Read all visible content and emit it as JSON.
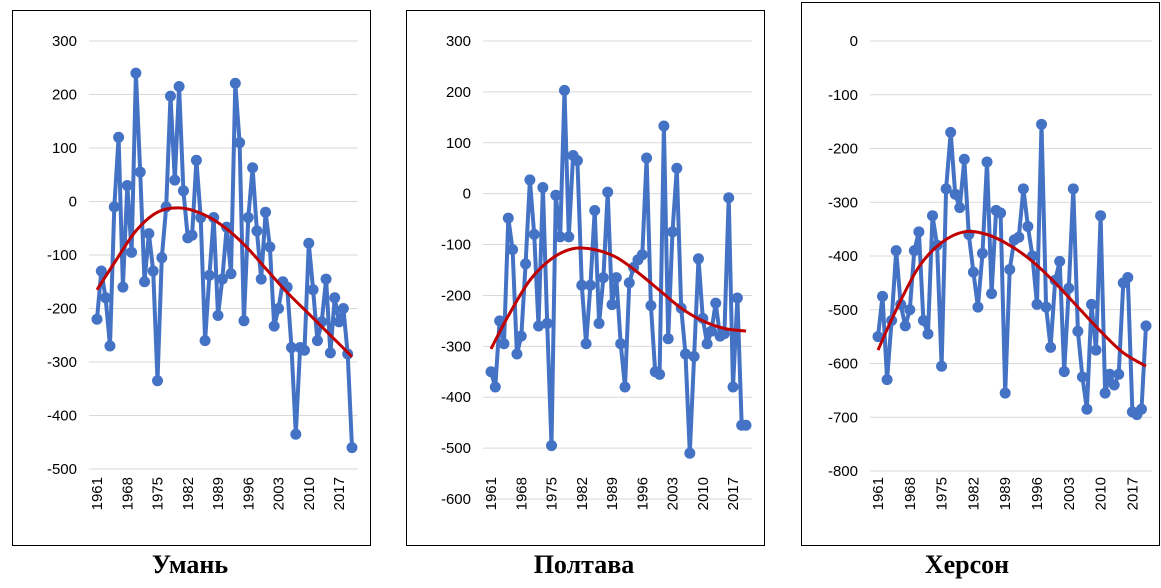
{
  "chart_data": [
    {
      "type": "line",
      "title": "Умань",
      "ylim": [
        -500,
        300
      ],
      "yticks": [
        300,
        200,
        100,
        0,
        -100,
        -200,
        -300,
        -400,
        -500
      ],
      "xticks": [
        1961,
        1968,
        1975,
        1982,
        1989,
        1996,
        2003,
        2010,
        2017
      ],
      "grid": true,
      "colors": {
        "series": "#4472C4",
        "trend": "#C00000"
      },
      "series": [
        {
          "x": [
            1961,
            1962,
            1963,
            1964,
            1965,
            1966,
            1967,
            1968,
            1969,
            1970,
            1971,
            1972,
            1973,
            1974,
            1975,
            1976,
            1977,
            1978,
            1979,
            1980,
            1981,
            1982,
            1983,
            1984,
            1985,
            1986,
            1987,
            1988,
            1989,
            1990,
            1991,
            1992,
            1993,
            1994,
            1995,
            1996,
            1997,
            1998,
            1999,
            2000,
            2001,
            2002,
            2003,
            2004,
            2005,
            2006,
            2007,
            2008,
            2009,
            2010,
            2011,
            2012,
            2013,
            2014,
            2015,
            2016,
            2017,
            2018,
            2019,
            2020
          ],
          "values": [
            -220,
            -130,
            -180,
            -270,
            -10,
            120,
            -160,
            30,
            -95,
            240,
            55,
            -150,
            -60,
            -130,
            -335,
            -105,
            -10,
            197,
            40,
            215,
            20,
            -68,
            -63,
            77,
            -30,
            -260,
            -138,
            -30,
            -213,
            -145,
            -48,
            -135,
            221,
            110,
            -223,
            -30,
            63,
            -55,
            -145,
            -20,
            -85,
            -233,
            -200,
            -150,
            -160,
            -273,
            -435,
            -273,
            -278,
            -78,
            -165,
            -260,
            -225,
            -145,
            -283,
            -180,
            -225,
            -200,
            -285,
            -460
          ]
        }
      ],
      "trend": {
        "x": [
          1961,
          1965,
          1970,
          1975,
          1980,
          1985,
          1990,
          1995,
          2000,
          2005,
          2010,
          2015,
          2020
        ],
        "values": [
          -165,
          -115,
          -55,
          -20,
          -12,
          -22,
          -45,
          -80,
          -125,
          -170,
          -210,
          -250,
          -290
        ]
      }
    },
    {
      "type": "line",
      "title": "Полтава",
      "ylim": [
        -600,
        300
      ],
      "yticks": [
        300,
        200,
        100,
        0,
        -100,
        -200,
        -300,
        -400,
        -500,
        -600
      ],
      "xticks": [
        1961,
        1968,
        1975,
        1982,
        1989,
        1996,
        2003,
        2010,
        2017
      ],
      "grid": true,
      "colors": {
        "series": "#4472C4",
        "trend": "#C00000"
      },
      "series": [
        {
          "x": [
            1961,
            1962,
            1963,
            1964,
            1965,
            1966,
            1967,
            1968,
            1969,
            1970,
            1971,
            1972,
            1973,
            1974,
            1975,
            1976,
            1977,
            1978,
            1979,
            1980,
            1981,
            1982,
            1983,
            1984,
            1985,
            1986,
            1987,
            1988,
            1989,
            1990,
            1991,
            1992,
            1993,
            1994,
            1995,
            1996,
            1997,
            1998,
            1999,
            2000,
            2001,
            2002,
            2003,
            2004,
            2005,
            2006,
            2007,
            2008,
            2009,
            2010,
            2011,
            2012,
            2013,
            2014,
            2015,
            2016,
            2017,
            2018,
            2019,
            2020
          ],
          "values": [
            -350,
            -380,
            -250,
            -295,
            -48,
            -110,
            -315,
            -280,
            -138,
            27,
            -80,
            -260,
            12,
            -255,
            -495,
            -3,
            -85,
            203,
            -85,
            75,
            65,
            -180,
            -295,
            -180,
            -33,
            -255,
            -165,
            3,
            -218,
            -165,
            -295,
            -380,
            -175,
            -145,
            -130,
            -120,
            70,
            -220,
            -350,
            -355,
            133,
            -285,
            -75,
            50,
            -225,
            -315,
            -510,
            -320,
            -128,
            -245,
            -295,
            -270,
            -215,
            -280,
            -275,
            -8,
            -380,
            -205,
            -455,
            -455
          ]
        }
      ],
      "trend": {
        "x": [
          1961,
          1965,
          1970,
          1975,
          1980,
          1985,
          1990,
          1995,
          2000,
          2005,
          2010,
          2015,
          2020
        ],
        "values": [
          -305,
          -240,
          -170,
          -128,
          -108,
          -110,
          -125,
          -155,
          -190,
          -225,
          -250,
          -265,
          -270
        ]
      }
    },
    {
      "type": "line",
      "title": "Херсон",
      "ylim": [
        -800,
        0
      ],
      "yticks": [
        0,
        -100,
        -200,
        -300,
        -400,
        -500,
        -600,
        -700,
        -800
      ],
      "xticks": [
        1961,
        1968,
        1975,
        1982,
        1989,
        1996,
        2003,
        2010,
        2017
      ],
      "grid": true,
      "colors": {
        "series": "#4472C4",
        "trend": "#C00000"
      },
      "series": [
        {
          "x": [
            1961,
            1962,
            1963,
            1964,
            1965,
            1966,
            1967,
            1968,
            1969,
            1970,
            1971,
            1972,
            1973,
            1974,
            1975,
            1976,
            1977,
            1978,
            1979,
            1980,
            1981,
            1982,
            1983,
            1984,
            1985,
            1986,
            1987,
            1988,
            1989,
            1990,
            1991,
            1992,
            1993,
            1994,
            1995,
            1996,
            1997,
            1998,
            1999,
            2000,
            2001,
            2002,
            2003,
            2004,
            2005,
            2006,
            2007,
            2008,
            2009,
            2010,
            2011,
            2012,
            2013,
            2014,
            2015,
            2016,
            2017,
            2018,
            2019,
            2020
          ],
          "values": [
            -550,
            -475,
            -630,
            -520,
            -390,
            -490,
            -530,
            -500,
            -390,
            -355,
            -520,
            -545,
            -325,
            -380,
            -605,
            -275,
            -170,
            -285,
            -310,
            -220,
            -360,
            -430,
            -495,
            -395,
            -225,
            -470,
            -315,
            -320,
            -655,
            -425,
            -370,
            -365,
            -275,
            -345,
            -400,
            -490,
            -155,
            -495,
            -570,
            -445,
            -410,
            -615,
            -460,
            -275,
            -540,
            -625,
            -685,
            -490,
            -575,
            -325,
            -655,
            -620,
            -640,
            -620,
            -450,
            -440,
            -690,
            -695,
            -685,
            -530
          ]
        }
      ],
      "trend": {
        "x": [
          1961,
          1965,
          1970,
          1975,
          1980,
          1985,
          1990,
          1995,
          2000,
          2005,
          2010,
          2015,
          2020
        ],
        "values": [
          -575,
          -500,
          -420,
          -375,
          -355,
          -360,
          -380,
          -410,
          -450,
          -495,
          -540,
          -580,
          -605
        ]
      }
    }
  ]
}
